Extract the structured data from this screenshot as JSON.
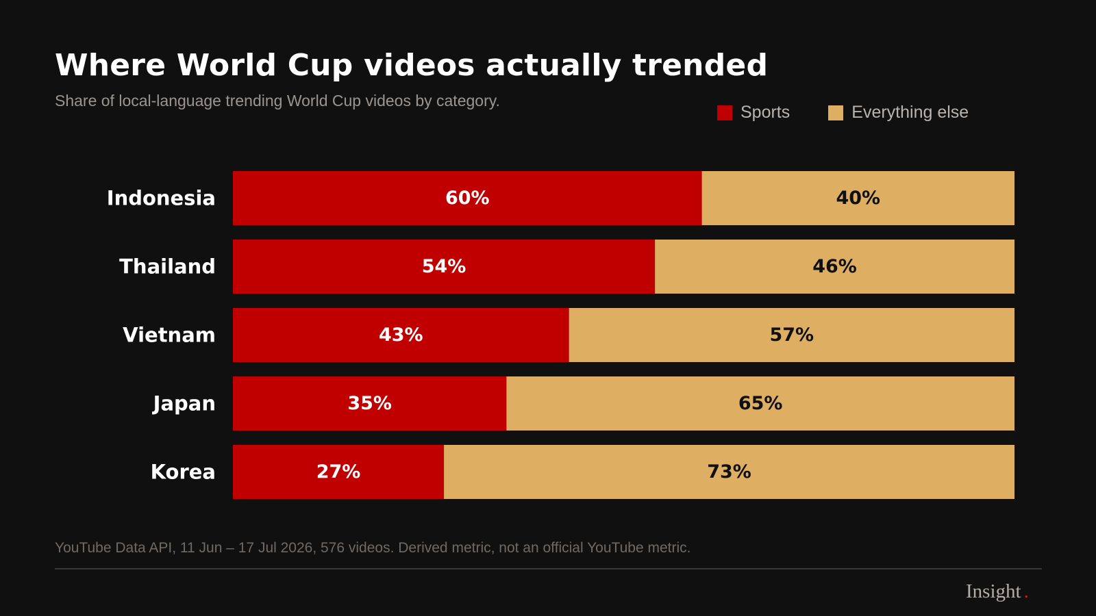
{
  "title": "Where World Cup videos actually trended",
  "subtitle": "Share of local-language trending World Cup videos by category.",
  "legend": [
    {
      "label": "Sports",
      "color": "#c00000"
    },
    {
      "label": "Everything else",
      "color": "#deaf63"
    }
  ],
  "footer": {
    "note": "YouTube Data API, 11 Jun – 17 Jul 2026, 576 videos. Derived metric, not an official YouTube metric.",
    "brand": "Insight",
    "brand_dot": "."
  },
  "chart_data": {
    "type": "bar",
    "orientation": "horizontal",
    "stacked": true,
    "title": "Where World Cup videos actually trended",
    "subtitle": "Share of local-language trending World Cup videos by category.",
    "categories": [
      "Indonesia",
      "Thailand",
      "Vietnam",
      "Japan",
      "Korea"
    ],
    "series": [
      {
        "name": "Sports",
        "values": [
          60,
          54,
          43,
          35,
          27
        ],
        "color": "#c00000",
        "label_color": "#ffffff"
      },
      {
        "name": "Everything else",
        "values": [
          40,
          46,
          57,
          65,
          73
        ],
        "color": "#deaf63",
        "label_color": "#111010"
      }
    ],
    "value_suffix": "%",
    "xlim": [
      0,
      100
    ],
    "grid": false,
    "legend_position": "top-right"
  }
}
